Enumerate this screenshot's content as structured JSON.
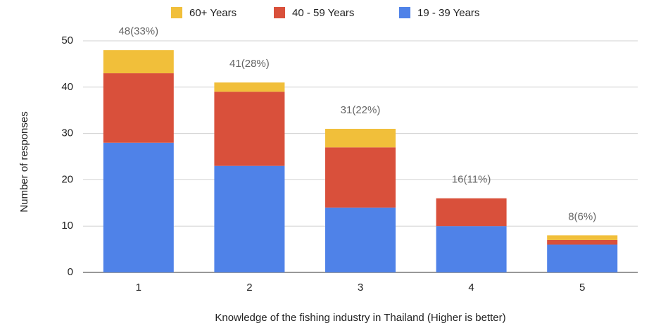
{
  "chart_data": {
    "type": "stacked_bar",
    "x_label": "Knowledge of the fishing industry in Thailand (Higher is better)",
    "y_label": "Number of responses",
    "categories": [
      "1",
      "2",
      "3",
      "4",
      "5"
    ],
    "series": [
      {
        "name": "60+ Years",
        "color": "#f1bf3a",
        "values": [
          5,
          2,
          4,
          0,
          1
        ]
      },
      {
        "name": "40 - 59 Years",
        "color": "#d9503b",
        "values": [
          15,
          16,
          13,
          6,
          1
        ]
      },
      {
        "name": "19 - 39 Years",
        "color": "#4f82e8",
        "values": [
          28,
          23,
          14,
          10,
          6
        ]
      }
    ],
    "total_labels": [
      "48(33%)",
      "41(28%)",
      "31(22%)",
      "16(11%)",
      "8(6%)"
    ],
    "ylim": [
      0,
      50
    ],
    "yticks": [
      0,
      10,
      20,
      30,
      40,
      50
    ],
    "grid": true,
    "legend": "top"
  }
}
